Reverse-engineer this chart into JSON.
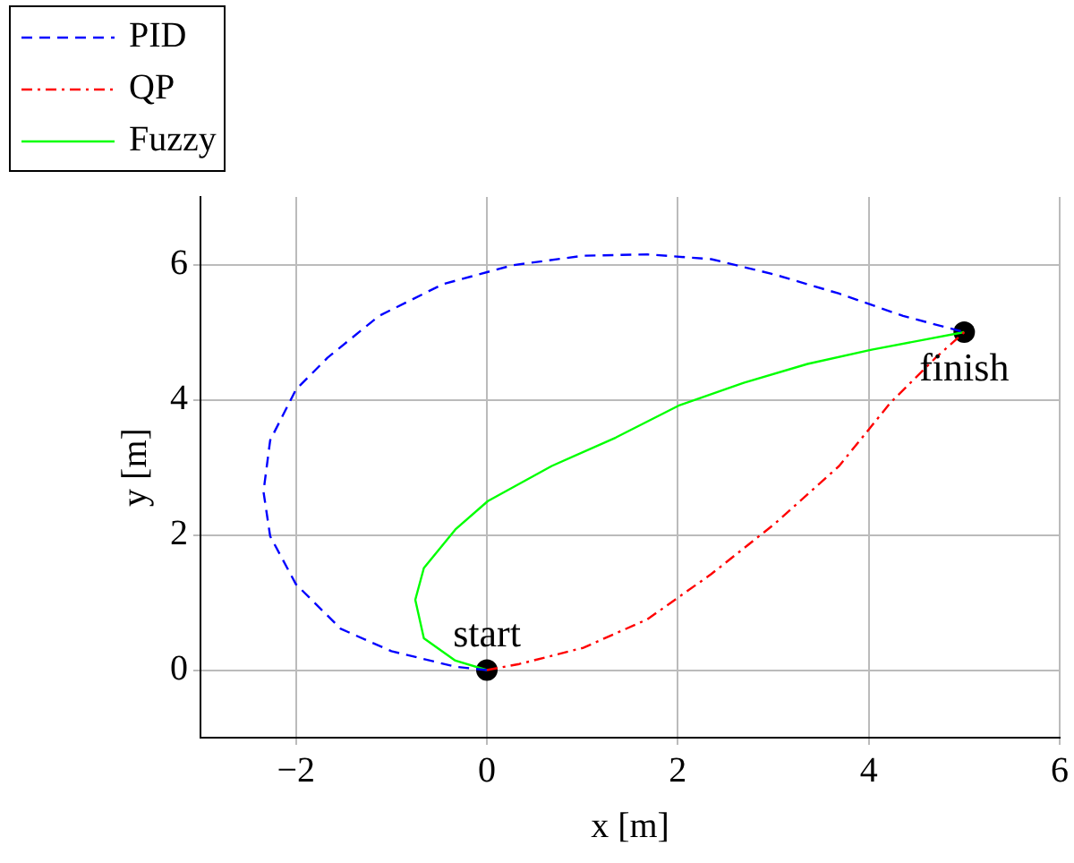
{
  "chart_data": {
    "type": "line",
    "xlabel": "x [m]",
    "ylabel": "y [m]",
    "xlim": [
      -3,
      6
    ],
    "ylim": [
      -1,
      7
    ],
    "xticks": [
      -2,
      0,
      2,
      4,
      6
    ],
    "yticks": [
      0,
      2,
      4,
      6
    ],
    "grid": true,
    "legend": "top left",
    "series": [
      {
        "name": "PID",
        "color": "#0000ff",
        "line_style": "dashed",
        "x": [
          0,
          -0.33,
          -1.0,
          -1.53,
          -2.0,
          -2.27,
          -2.34,
          -2.27,
          -2.0,
          -1.67,
          -1.13,
          -0.46,
          0.27,
          1.01,
          1.68,
          2.35,
          3.02,
          3.69,
          4.36,
          5
        ],
        "values": [
          0,
          0.05,
          0.28,
          0.61,
          1.27,
          1.98,
          2.64,
          3.4,
          4.15,
          4.62,
          5.24,
          5.71,
          5.99,
          6.13,
          6.15,
          6.08,
          5.85,
          5.57,
          5.24,
          5
        ]
      },
      {
        "name": "QP",
        "color": "#ff0000",
        "line_style": "dashdot",
        "x": [
          0,
          0.34,
          1.01,
          1.68,
          2.35,
          3.02,
          3.69,
          4.23,
          4.7,
          5
        ],
        "values": [
          0,
          0.09,
          0.33,
          0.75,
          1.42,
          2.17,
          3.02,
          3.96,
          4.62,
          5
        ]
      },
      {
        "name": "Fuzzy",
        "color": "#00ff00",
        "line_style": "solid",
        "x": [
          0,
          -0.33,
          -0.66,
          -0.75,
          -0.66,
          -0.33,
          0.01,
          0.68,
          1.35,
          2.02,
          2.69,
          3.36,
          4.03,
          5
        ],
        "values": [
          0,
          0.14,
          0.47,
          1.04,
          1.51,
          2.08,
          2.5,
          3.02,
          3.44,
          3.92,
          4.25,
          4.53,
          4.74,
          5
        ]
      },
      {
        "type": "scatter",
        "color": "#000000",
        "marker": "circle",
        "x": [
          0,
          5
        ],
        "values": [
          0,
          5
        ]
      }
    ],
    "annotations": [
      {
        "text": "start",
        "x": 0,
        "y": 0
      },
      {
        "text": "finish",
        "x": 5,
        "y": 5
      }
    ]
  }
}
